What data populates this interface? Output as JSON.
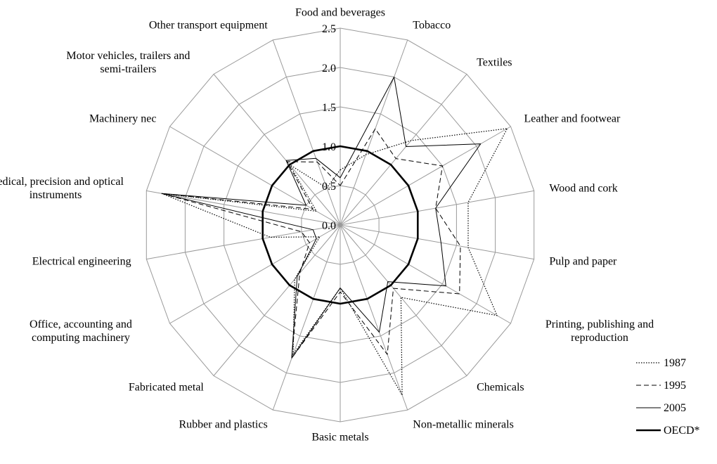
{
  "chart_data": {
    "type": "radar",
    "categories": [
      "Food and beverages",
      "Tobacco",
      "Textiles",
      "Leather and footwear",
      "Wood and cork",
      "Pulp and paper",
      "Printing, publishing and reproduction",
      "Chemicals",
      "Non-metallic minerals",
      "Basic metals",
      "Rubber and plastics",
      "Fabricated metal",
      "Office, accounting and computing machinery",
      "Electrical engineering",
      "Medical, precision and optical instruments",
      "Machinery nec",
      "Motor vehicles, trailers and semi-trailers",
      "Other transport equipment"
    ],
    "series": [
      {
        "name": "1987",
        "color": "#000000",
        "dash": "dotted",
        "values": [
          0.7,
          0.95,
          1.4,
          2.45,
          1.65,
          1.65,
          2.3,
          1.2,
          2.3,
          0.8,
          1.75,
          0.9,
          0.3,
          0.9,
          2.3,
          0.35,
          1.0,
          0.5
        ]
      },
      {
        "name": "1995",
        "color": "#000000",
        "dash": "dashed",
        "values": [
          0.5,
          1.3,
          1.1,
          1.5,
          1.23,
          1.55,
          1.75,
          1.05,
          1.75,
          0.85,
          1.8,
          0.8,
          0.45,
          0.5,
          2.3,
          0.4,
          1.05,
          0.85
        ]
      },
      {
        "name": "2005",
        "color": "#000000",
        "dash": "solid",
        "values": [
          0.6,
          2.0,
          1.3,
          2.06,
          1.23,
          1.3,
          1.55,
          0.94,
          1.45,
          0.8,
          1.8,
          0.85,
          0.35,
          0.35,
          2.3,
          0.5,
          1.07,
          0.9
        ]
      },
      {
        "name": "OECD*",
        "color": "#000000",
        "dash": "bold",
        "values": [
          1,
          1,
          1,
          1,
          1,
          1,
          1,
          1,
          1,
          1,
          1,
          1,
          1,
          1,
          1,
          1,
          1,
          1
        ]
      }
    ],
    "ylim": [
      0,
      2.5
    ],
    "yticks": [
      {
        "value": 0,
        "label": "0.0"
      },
      0.5,
      {
        "value": 1,
        "label": "1.0"
      },
      1.5,
      {
        "value": 2,
        "label": "2.0"
      },
      2.5
    ],
    "grid": true,
    "legend": "lower right"
  }
}
